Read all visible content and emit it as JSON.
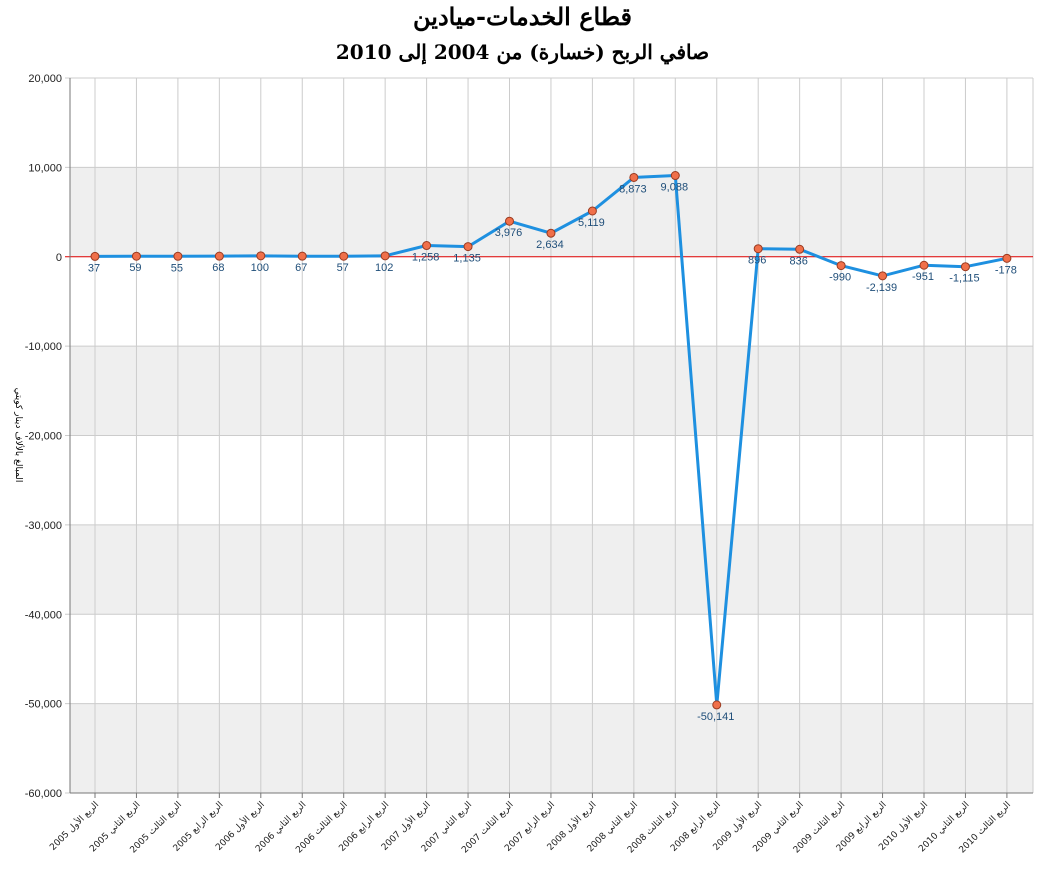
{
  "chart_data": {
    "type": "line",
    "title": "قطاع الخدمات-ميادين",
    "subtitle": "صافي الربح (خسارة) من 2004 إلى 2010",
    "xlabel": "",
    "ylabel": "المبالغ بالألاف دينار كويتي",
    "ylim": [
      -60000,
      20000
    ],
    "yticks": [
      20000,
      10000,
      0,
      -10000,
      -20000,
      -30000,
      -40000,
      -50000,
      -60000
    ],
    "ytick_labels": [
      "20,000",
      "10,000",
      "0",
      "-10,000",
      "-20,000",
      "-30,000",
      "-40,000",
      "-50,000",
      "-60,000"
    ],
    "grid": true,
    "categories": [
      "الربع الأول 2005",
      "الربع الثاني 2005",
      "الربع الثالث 2005",
      "الربع الرابع 2005",
      "الربع الأول 2006",
      "الربع الثاني 2006",
      "الربع الثالث 2006",
      "الربع الرابع 2006",
      "الربع الأول 2007",
      "الربع الثاني 2007",
      "الربع الثالث 2007",
      "الربع الرابع 2007",
      "الربع الأول 2008",
      "الربع الثاني 2008",
      "الربع الثالث 2008",
      "الربع الرابع 2008",
      "الربع الأول 2009",
      "الربع الثاني 2009",
      "الربع الثالث 2009",
      "الربع الرابع 2009",
      "الربع الأول 2010",
      "الربع الثاني 2010",
      "الربع الثالث 2010"
    ],
    "series": [
      {
        "values": [
          37,
          59,
          55,
          68,
          100,
          67,
          57,
          102,
          1258,
          1135,
          3976,
          2634,
          5119,
          8873,
          9088,
          -50141,
          896,
          836,
          -990,
          -2139,
          -951,
          -1115,
          -178
        ],
        "labels": [
          "37",
          "59",
          "55",
          "68",
          "100",
          "67",
          "57",
          "102",
          "1,258",
          "1,135",
          "3,976",
          "2,634",
          "5,119",
          "8,873",
          "9,088",
          "-50,141",
          "896",
          "836",
          "-990",
          "-2,139",
          "-951",
          "-1,115",
          "-178"
        ]
      }
    ],
    "colors": {
      "line": "#1e90e0",
      "marker_fill": "#f0704a",
      "marker_stroke": "#9a3a20",
      "zero_line": "#dd0000",
      "band": "#efefef",
      "grid": "#cccccc",
      "data_label": "#1f4e79"
    }
  }
}
